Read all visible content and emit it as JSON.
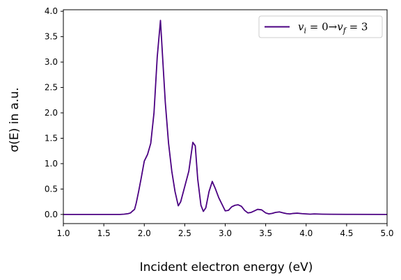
{
  "chart_data": {
    "type": "line",
    "xlabel": "Incident electron energy (eV)",
    "ylabel": "σ(E) in a.u.",
    "xlim": [
      1.0,
      5.0
    ],
    "ylim": [
      -0.18,
      4.03
    ],
    "xticks": [
      "1.0",
      "1.5",
      "2.0",
      "2.5",
      "3.0",
      "3.5",
      "4.0",
      "4.5",
      "5.0"
    ],
    "yticks": [
      "0.0",
      "0.5",
      "1.0",
      "1.5",
      "2.0",
      "2.5",
      "3.0",
      "3.5",
      "4.0"
    ],
    "grid": false,
    "legend_position": "top-right",
    "series": [
      {
        "name": "v_i = 0 → v_f = 3",
        "legend": {
          "lhs_var": "v",
          "lhs_sub": "i",
          "lhs_val": "0",
          "arrow": "→",
          "rhs_var": "v",
          "rhs_sub": "f",
          "rhs_val": "3"
        },
        "color": "#4b0082",
        "x": [
          1.0,
          1.5,
          1.7,
          1.75,
          1.8,
          1.83,
          1.85,
          1.88,
          1.9,
          1.93,
          1.96,
          2.0,
          2.04,
          2.08,
          2.12,
          2.16,
          2.2,
          2.23,
          2.26,
          2.3,
          2.34,
          2.38,
          2.42,
          2.45,
          2.5,
          2.55,
          2.6,
          2.63,
          2.66,
          2.7,
          2.73,
          2.76,
          2.8,
          2.84,
          2.88,
          2.92,
          2.96,
          3.0,
          3.04,
          3.08,
          3.12,
          3.16,
          3.2,
          3.24,
          3.28,
          3.32,
          3.36,
          3.4,
          3.45,
          3.5,
          3.54,
          3.58,
          3.62,
          3.67,
          3.72,
          3.76,
          3.8,
          3.84,
          3.89,
          3.95,
          4.0,
          4.05,
          4.1,
          4.2,
          4.3,
          4.5,
          5.0
        ],
        "y": [
          0.0,
          0.0,
          0.0,
          0.005,
          0.015,
          0.03,
          0.06,
          0.1,
          0.22,
          0.45,
          0.7,
          1.05,
          1.18,
          1.4,
          2.0,
          3.1,
          3.82,
          3.0,
          2.2,
          1.4,
          0.85,
          0.45,
          0.17,
          0.25,
          0.55,
          0.85,
          1.42,
          1.35,
          0.7,
          0.18,
          0.06,
          0.13,
          0.45,
          0.65,
          0.5,
          0.33,
          0.2,
          0.07,
          0.08,
          0.15,
          0.18,
          0.19,
          0.16,
          0.08,
          0.03,
          0.04,
          0.07,
          0.1,
          0.09,
          0.03,
          0.01,
          0.02,
          0.04,
          0.05,
          0.03,
          0.015,
          0.01,
          0.02,
          0.025,
          0.015,
          0.01,
          0.005,
          0.01,
          0.005,
          0.003,
          0.002,
          0.0
        ]
      }
    ]
  }
}
